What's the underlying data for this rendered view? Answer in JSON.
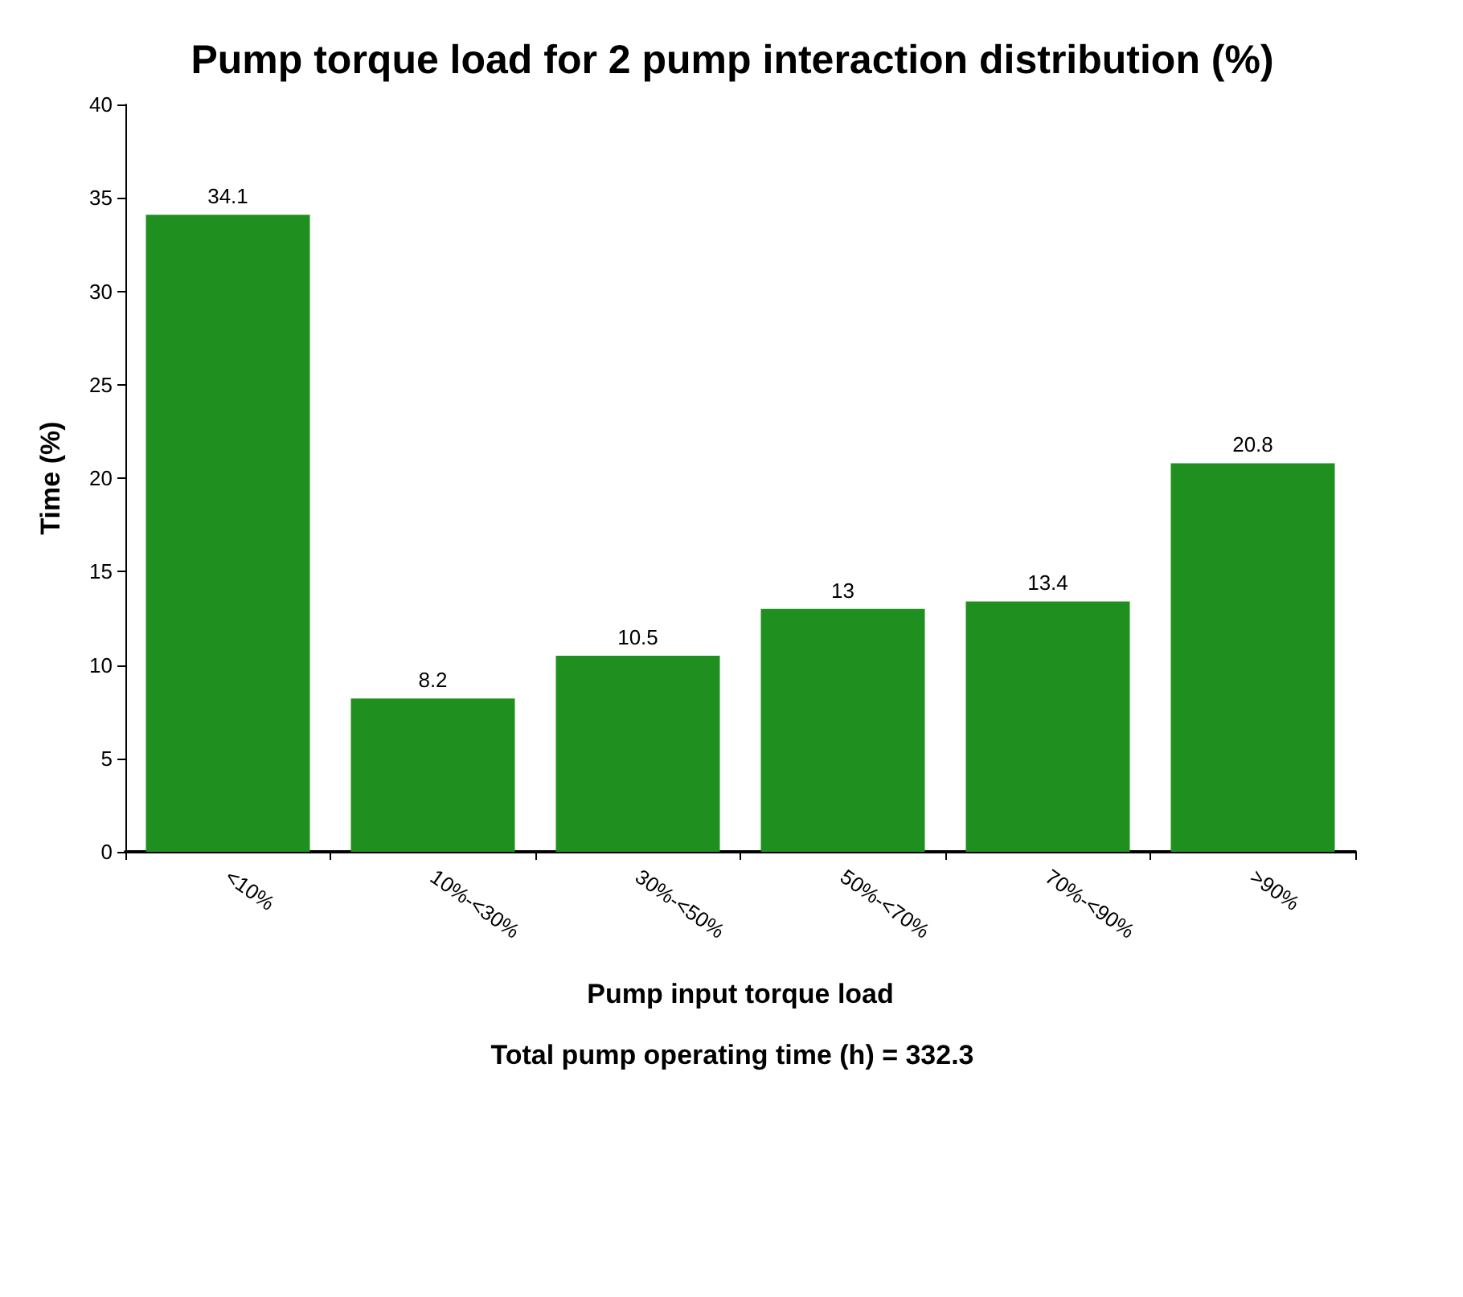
{
  "chart_data": {
    "type": "bar",
    "title": "Pump torque load for 2 pump interaction distribution (%)",
    "xlabel": "Pump input torque load",
    "ylabel": "Time (%)",
    "annotations": [
      "Total pump operating time (h) = 332.3"
    ],
    "categories": [
      "<10%",
      "10%-<30%",
      "30%-<50%",
      "50%-<70%",
      "70%-<90%",
      ">90%"
    ],
    "values": [
      34.1,
      8.2,
      10.5,
      13,
      13.4,
      20.8
    ],
    "color": "#1f8f1f",
    "ylim": [
      0,
      40
    ],
    "yticks": [
      0,
      5,
      10,
      15,
      20,
      25,
      30,
      35,
      40
    ],
    "grid": false,
    "data_labels": true
  }
}
